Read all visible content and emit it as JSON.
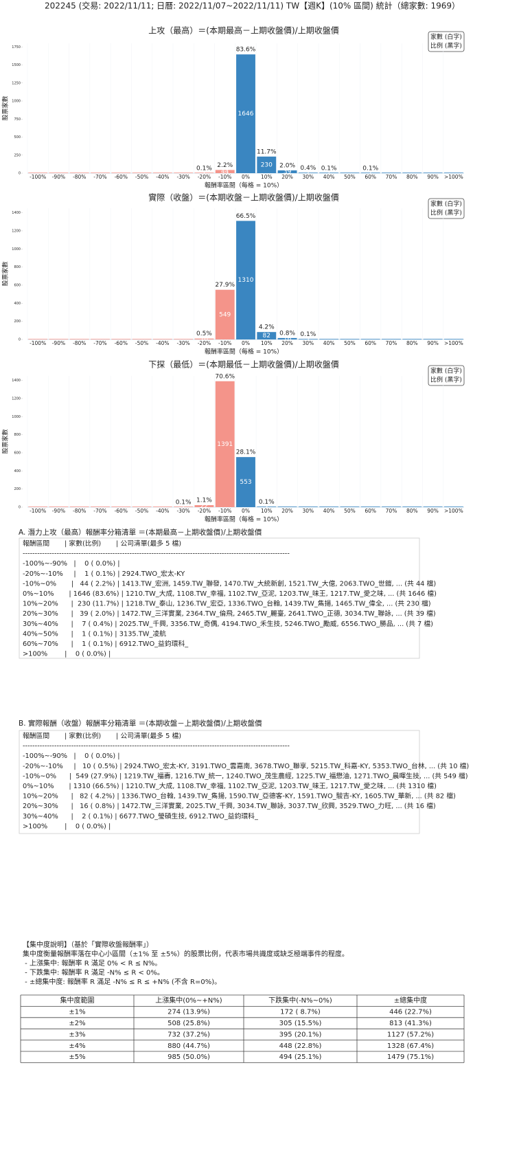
{
  "title": "202245 (交易: 2022/11/11; 日曆: 2022/11/07~2022/11/11) TW【週K】(10% 區間) 統計（總家數: 1969）",
  "chart_data": [
    {
      "type": "bar",
      "title": "上攻（最高）＝(本期最高－上期收盤價)/上期收盤價",
      "x_label": "報酬率區間（每格 = 10%）",
      "y_label": "股票家數",
      "legend": [
        "家數 (白字)",
        "比例 (黑字)"
      ],
      "categories": [
        "-100%",
        "-90%",
        "-80%",
        "-70%",
        "-60%",
        "-50%",
        "-40%",
        "-30%",
        "-20%",
        "-10%",
        "0%",
        "10%",
        "20%",
        "30%",
        "40%",
        "50%",
        "60%",
        "70%",
        "80%",
        "90%",
        ">100%"
      ],
      "values": [
        0,
        0,
        0,
        0,
        0,
        0,
        0,
        0,
        1,
        44,
        1646,
        230,
        39,
        7,
        1,
        0,
        1,
        0,
        0,
        0,
        0
      ],
      "percent_labels": [
        null,
        null,
        null,
        null,
        null,
        null,
        null,
        null,
        "0.1%",
        "2.2%",
        "83.6%",
        "11.7%",
        "2.0%",
        "0.4%",
        "0.1%",
        null,
        "0.1%",
        null,
        null,
        null,
        null
      ],
      "colors": [
        "#f4948a",
        "#f4948a",
        "#f4948a",
        "#f4948a",
        "#f4948a",
        "#f4948a",
        "#f4948a",
        "#f4948a",
        "#f4948a",
        "#f4948a",
        "#3a86c1",
        "#3a86c1",
        "#3a86c1",
        "#3a86c1",
        "#3a86c1",
        "#3a86c1",
        "#3a86c1",
        "#3a86c1",
        "#3a86c1",
        "#3a86c1",
        "#3a86c1"
      ],
      "ylim": [
        0,
        1800
      ],
      "yticks": [
        0,
        250,
        500,
        750,
        1000,
        1250,
        1500,
        1750
      ]
    },
    {
      "type": "bar",
      "title": "實際（收盤）＝(本期收盤－上期收盤價)/上期收盤價",
      "x_label": "報酬率區間（每格 = 10%）",
      "y_label": "股票家數",
      "legend": [
        "家數 (白字)",
        "比例 (黑字)"
      ],
      "categories": [
        "-100%",
        "-90%",
        "-80%",
        "-70%",
        "-60%",
        "-50%",
        "-40%",
        "-30%",
        "-20%",
        "-10%",
        "0%",
        "10%",
        "20%",
        "30%",
        "40%",
        "50%",
        "60%",
        "70%",
        "80%",
        "90%",
        ">100%"
      ],
      "values": [
        0,
        0,
        0,
        0,
        0,
        0,
        0,
        0,
        10,
        549,
        1310,
        82,
        16,
        2,
        0,
        0,
        0,
        0,
        0,
        0,
        0
      ],
      "percent_labels": [
        null,
        null,
        null,
        null,
        null,
        null,
        null,
        null,
        "0.5%",
        "27.9%",
        "66.5%",
        "4.2%",
        "0.8%",
        "0.1%",
        null,
        null,
        null,
        null,
        null,
        null,
        null
      ],
      "colors": [
        "#f4948a",
        "#f4948a",
        "#f4948a",
        "#f4948a",
        "#f4948a",
        "#f4948a",
        "#f4948a",
        "#f4948a",
        "#f4948a",
        "#f4948a",
        "#3a86c1",
        "#3a86c1",
        "#3a86c1",
        "#3a86c1",
        "#3a86c1",
        "#3a86c1",
        "#3a86c1",
        "#3a86c1",
        "#3a86c1",
        "#3a86c1",
        "#3a86c1"
      ],
      "ylim": [
        0,
        1450
      ],
      "yticks": [
        0,
        200,
        400,
        600,
        800,
        1000,
        1200,
        1400
      ]
    },
    {
      "type": "bar",
      "title": "下探（最低）＝(本期最低－上期收盤價)/上期收盤價",
      "x_label": "報酬率區間（每格 = 10%）",
      "y_label": "股票家數",
      "legend": [
        "家數 (白字)",
        "比例 (黑字)"
      ],
      "categories": [
        "-100%",
        "-90%",
        "-80%",
        "-70%",
        "-60%",
        "-50%",
        "-40%",
        "-30%",
        "-20%",
        "-10%",
        "0%",
        "10%",
        "20%",
        "30%",
        "40%",
        "50%",
        "60%",
        "70%",
        "80%",
        "90%",
        ">100%"
      ],
      "values": [
        0,
        0,
        0,
        0,
        0,
        0,
        0,
        1,
        22,
        1391,
        553,
        2,
        0,
        0,
        0,
        0,
        0,
        0,
        0,
        0,
        0
      ],
      "percent_labels": [
        null,
        null,
        null,
        null,
        null,
        null,
        null,
        "0.1%",
        "1.1%",
        "70.6%",
        "28.1%",
        "0.1%",
        null,
        null,
        null,
        null,
        null,
        null,
        null,
        null,
        null
      ],
      "colors": [
        "#f4948a",
        "#f4948a",
        "#f4948a",
        "#f4948a",
        "#f4948a",
        "#f4948a",
        "#f4948a",
        "#f4948a",
        "#f4948a",
        "#f4948a",
        "#3a86c1",
        "#3a86c1",
        "#3a86c1",
        "#3a86c1",
        "#3a86c1",
        "#3a86c1",
        "#3a86c1",
        "#3a86c1",
        "#3a86c1",
        "#3a86c1",
        "#3a86c1"
      ],
      "ylim": [
        0,
        1450
      ],
      "yticks": [
        0,
        200,
        400,
        600,
        800,
        1000,
        1200,
        1400
      ]
    }
  ],
  "sections": [
    {
      "title": "A. 潛力上攻（最高）報酬率分箱清單 ＝(本期最高－上期收盤價)/上期收盤價",
      "header": "報酬區間       | 家數(比例)       | 公司清單(最多 5 檔)",
      "divider": "--------------------------------------------------------------------------------------------------------------",
      "rows": [
        "-100%~-90%   |    0 ( 0.0%) |",
        "-20%~-10%     |    1 ( 0.1%) | 2924.TWO_宏太-KY",
        "-10%~0%       |   44 ( 2.2%) | 1413.TW_宏洲, 1459.TW_聯發, 1470.TW_大統新創, 1521.TW_大億, 2063.TWO_世鎧, ... (共 44 檔)",
        "0%~10%       | 1646 (83.6%) | 1210.TW_大成, 1108.TW_幸福, 1102.TW_亞泥, 1203.TW_味王, 1217.TW_愛之味, ... (共 1646 檔)",
        "10%~20%      |  230 (11.7%) | 1218.TW_泰山, 1236.TW_宏亞, 1336.TWO_台翰, 1439.TW_雋揚, 1465.TW_偉全, ... (共 230 檔)",
        "20%~30%      |   39 ( 2.0%) | 1472.TW_三洋實業, 2364.TW_倫飛, 2465.TW_麗臺, 2641.TWO_正德, 3034.TW_聯詠, ... (共 39 檔)",
        "30%~40%      |    7 ( 0.4%) | 2025.TW_千興, 3356.TW_奇偶, 4194.TWO_禾生技, 5246.TWO_勵威, 6556.TWO_勝品, ... (共 7 檔)",
        "40%~50%      |    1 ( 0.1%) | 3135.TW_凌航",
        "60%~70%      |    1 ( 0.1%) | 6912.TWO_益鈞環科_",
        ">100%        |    0 ( 0.0%) |"
      ]
    },
    {
      "title": "B. 實際報酬（收盤）報酬率分箱清單 ＝(本期收盤－上期收盤價)/上期收盤價",
      "header": "報酬區間       | 家數(比例)       | 公司清單(最多 5 檔)",
      "divider": "--------------------------------------------------------------------------------------------------------------",
      "rows": [
        "-100%~-90%   |    0 ( 0.0%) |",
        "-20%~-10%     |   10 ( 0.5%) | 2924.TWO_宏太-KY, 3191.TWO_雲嘉南, 3678.TWO_聯享, 5215.TW_科嘉-KY, 5353.TWO_台林, ... (共 10 檔)",
        "-10%~0%      |  549 (27.9%) | 1219.TW_福壽, 1216.TW_統一, 1240.TWO_茂生農經, 1225.TW_福懋油, 1271.TWO_晨暉生技, ... (共 549 檔)",
        "0%~10%       | 1310 (66.5%) | 1210.TW_大成, 1108.TW_幸福, 1102.TW_亞泥, 1203.TW_味王, 1217.TW_愛之味, ... (共 1310 檔)",
        "10%~20%      |   82 ( 4.2%) | 1336.TWO_台翰, 1439.TW_雋揚, 1590.TW_亞德客-KY, 1591.TWO_駿吉-KY, 1605.TW_華新, ... (共 82 檔)",
        "20%~30%      |   16 ( 0.8%) | 1472.TW_三洋實業, 2025.TW_千興, 3034.TW_聯詠, 3037.TW_欣興, 3529.TWO_力旺, ... (共 16 檔)",
        "30%~40%      |    2 ( 0.1%) | 6677.TWO_瑩碩生技, 6912.TWO_益鈞環科_",
        ">100%        |    0 ( 0.0%) |"
      ]
    }
  ],
  "notes": [
    "【集中度說明】（基於「實際收盤報酬率」）",
    "集中度衡量報酬率落在中心小區間（±1% 至 ±5%）的股票比例，代表市場共識度或缺乏極端事件的程度。",
    " - 上漲集中: 報酬率 R 滿足 0% < R ≤ N%。",
    " - 下跌集中: 報酬率 R 滿足 -N% ≤ R < 0%。",
    " - ±總集中度: 報酬率 R 滿足 -N% ≤ R ≤ +N% (不含 R=0%)。"
  ],
  "table": {
    "header": [
      "集中度範圍",
      "上漲集中(0%~+N%)",
      "下跌集中(-N%~0%)",
      "±總集中度"
    ],
    "rows": [
      [
        "±1%",
        "274 (13.9%)",
        "172 ( 8.7%)",
        "446 (22.7%)"
      ],
      [
        "±2%",
        "508 (25.8%)",
        "305 (15.5%)",
        "813 (41.3%)"
      ],
      [
        "±3%",
        "732 (37.2%)",
        "395 (20.1%)",
        "1127 (57.2%)"
      ],
      [
        "±4%",
        "880 (44.7%)",
        "448 (22.8%)",
        "1328 (67.4%)"
      ],
      [
        "±5%",
        "985 (50.0%)",
        "494 (25.1%)",
        "1479 (75.1%)"
      ]
    ]
  }
}
